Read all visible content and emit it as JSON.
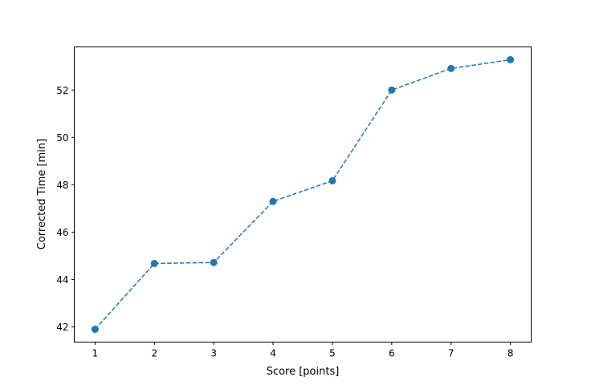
{
  "chart_data": {
    "type": "line",
    "title": "",
    "xlabel": "Score [points]",
    "ylabel": "Corrected Time [min]",
    "x": [
      1,
      2,
      3,
      4,
      5,
      6,
      7,
      8
    ],
    "series": [
      {
        "values": [
          41.9,
          44.68,
          44.72,
          47.3,
          48.17,
          52.0,
          52.91,
          53.28
        ],
        "color": "#1f77b4",
        "line_style": "dashed",
        "marker": "circle"
      }
    ],
    "xlim": [
      0.65,
      8.35
    ],
    "ylim": [
      41.36,
      53.82
    ],
    "xticks": [
      1,
      2,
      3,
      4,
      5,
      6,
      7,
      8
    ],
    "yticks": [
      42,
      44,
      46,
      48,
      50,
      52
    ],
    "grid": false,
    "legend": "none"
  }
}
